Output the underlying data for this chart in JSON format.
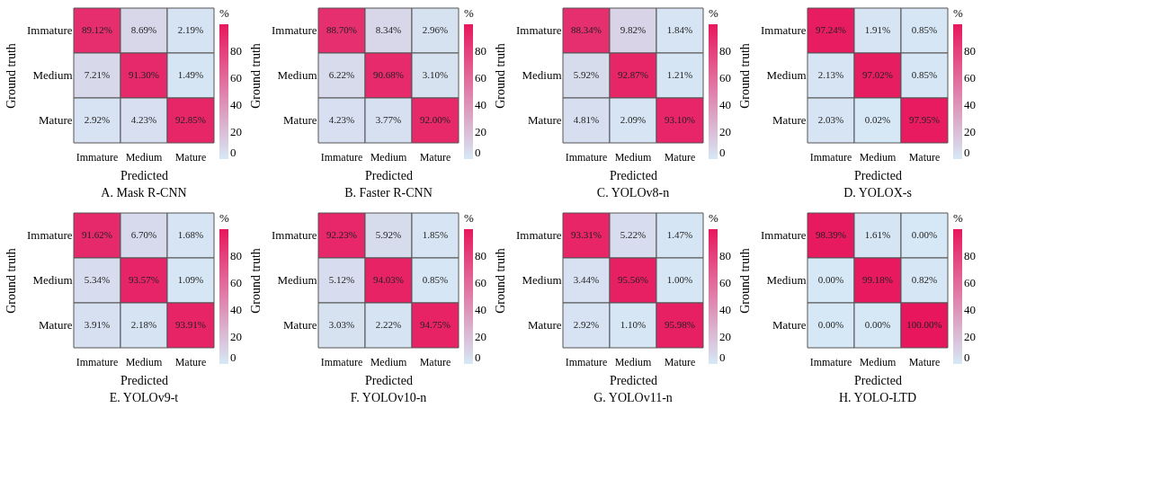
{
  "chart_data": [
    {
      "type": "heatmap",
      "title": "A. Mask R-CNN",
      "xlabel": "Predicted",
      "ylabel": "Ground truth",
      "clabel": "%",
      "categories": [
        "Immature",
        "Medium",
        "Mature"
      ],
      "y_categories": [
        "Immature",
        "Medium",
        "Mature"
      ],
      "clim": [
        0,
        100
      ],
      "cticks": [
        0,
        20,
        40,
        60,
        80
      ],
      "cells": [
        [
          89.12,
          8.69,
          2.19
        ],
        [
          7.21,
          91.3,
          1.49
        ],
        [
          2.92,
          4.23,
          92.85
        ]
      ],
      "cell_labels": [
        [
          "89.12%",
          "8.69%",
          "2.19%"
        ],
        [
          "7.21%",
          "91.30%",
          "1.49%"
        ],
        [
          "2.92%",
          "4.23%",
          "92.85%"
        ]
      ]
    },
    {
      "type": "heatmap",
      "title": "B. Faster R-CNN",
      "xlabel": "Predicted",
      "ylabel": "Ground truth",
      "clabel": "%",
      "categories": [
        "Immature",
        "Medium",
        "Mature"
      ],
      "y_categories": [
        "Immature",
        "Medium",
        "Mature"
      ],
      "clim": [
        0,
        100
      ],
      "cticks": [
        0,
        20,
        40,
        60,
        80
      ],
      "cells": [
        [
          88.7,
          8.34,
          2.96
        ],
        [
          6.22,
          90.68,
          3.1
        ],
        [
          4.23,
          3.77,
          92.0
        ]
      ],
      "cell_labels": [
        [
          "88.70%",
          "8.34%",
          "2.96%"
        ],
        [
          "6.22%",
          "90.68%",
          "3.10%"
        ],
        [
          "4.23%",
          "3.77%",
          "92.00%"
        ]
      ]
    },
    {
      "type": "heatmap",
      "title": "C. YOLOv8-n",
      "xlabel": "Predicted",
      "ylabel": "Ground truth",
      "clabel": "%",
      "categories": [
        "Immature",
        "Medium",
        "Mature"
      ],
      "y_categories": [
        "Immature",
        "Medium",
        "Mature"
      ],
      "clim": [
        0,
        100
      ],
      "cticks": [
        0,
        20,
        40,
        60,
        80
      ],
      "cells": [
        [
          88.34,
          9.82,
          1.84
        ],
        [
          5.92,
          92.87,
          1.21
        ],
        [
          4.81,
          2.09,
          93.1
        ]
      ],
      "cell_labels": [
        [
          "88.34%",
          "9.82%",
          "1.84%"
        ],
        [
          "5.92%",
          "92.87%",
          "1.21%"
        ],
        [
          "4.81%",
          "2.09%",
          "93.10%"
        ]
      ]
    },
    {
      "type": "heatmap",
      "title": "D. YOLOX-s",
      "xlabel": "Predicted",
      "ylabel": "Ground truth",
      "clabel": "%",
      "categories": [
        "Immature",
        "Medium",
        "Mature"
      ],
      "y_categories": [
        "Immature",
        "Medium",
        "Mature"
      ],
      "clim": [
        0,
        100
      ],
      "cticks": [
        0,
        20,
        40,
        60,
        80
      ],
      "cells": [
        [
          97.24,
          1.91,
          0.85
        ],
        [
          2.13,
          97.02,
          0.85
        ],
        [
          2.03,
          0.02,
          97.95
        ]
      ],
      "cell_labels": [
        [
          "97.24%",
          "1.91%",
          "0.85%"
        ],
        [
          "2.13%",
          "97.02%",
          "0.85%"
        ],
        [
          "2.03%",
          "0.02%",
          "97.95%"
        ]
      ]
    },
    {
      "type": "heatmap",
      "title": "E. YOLOv9-t",
      "xlabel": "Predicted",
      "ylabel": "Ground truth",
      "clabel": "%",
      "categories": [
        "Immature",
        "Medium",
        "Mature"
      ],
      "y_categories": [
        "Immature",
        "Medium",
        "Mature"
      ],
      "clim": [
        0,
        100
      ],
      "cticks": [
        0,
        20,
        40,
        60,
        80
      ],
      "cells": [
        [
          91.62,
          6.7,
          1.68
        ],
        [
          5.34,
          93.57,
          1.09
        ],
        [
          3.91,
          2.18,
          93.91
        ]
      ],
      "cell_labels": [
        [
          "91.62%",
          "6.70%",
          "1.68%"
        ],
        [
          "5.34%",
          "93.57%",
          "1.09%"
        ],
        [
          "3.91%",
          "2.18%",
          "93.91%"
        ]
      ]
    },
    {
      "type": "heatmap",
      "title": "F. YOLOv10-n",
      "xlabel": "Predicted",
      "ylabel": "Ground truth",
      "clabel": "%",
      "categories": [
        "Immature",
        "Medium",
        "Mature"
      ],
      "y_categories": [
        "Immature",
        "Medium",
        "Mature"
      ],
      "clim": [
        0,
        100
      ],
      "cticks": [
        0,
        20,
        40,
        60,
        80
      ],
      "cells": [
        [
          92.23,
          5.92,
          1.85
        ],
        [
          5.12,
          94.03,
          0.85
        ],
        [
          3.03,
          2.22,
          94.75
        ]
      ],
      "cell_labels": [
        [
          "92.23%",
          "5.92%",
          "1.85%"
        ],
        [
          "5.12%",
          "94.03%",
          "0.85%"
        ],
        [
          "3.03%",
          "2.22%",
          "94.75%"
        ]
      ]
    },
    {
      "type": "heatmap",
      "title": "G. YOLOv11-n",
      "xlabel": "Predicted",
      "ylabel": "Ground truth",
      "clabel": "%",
      "categories": [
        "Immature",
        "Medium",
        "Mature"
      ],
      "y_categories": [
        "Immature",
        "Medium",
        "Mature"
      ],
      "clim": [
        0,
        100
      ],
      "cticks": [
        0,
        20,
        40,
        60,
        80
      ],
      "cells": [
        [
          93.31,
          5.22,
          1.47
        ],
        [
          3.44,
          95.56,
          1.0
        ],
        [
          2.92,
          1.1,
          95.98
        ]
      ],
      "cell_labels": [
        [
          "93.31%",
          "5.22%",
          "1.47%"
        ],
        [
          "3.44%",
          "95.56%",
          "1.00%"
        ],
        [
          "2.92%",
          "1.10%",
          "95.98%"
        ]
      ]
    },
    {
      "type": "heatmap",
      "title": "H. YOLO-LTD",
      "xlabel": "Predicted",
      "ylabel": "Ground truth",
      "clabel": "%",
      "categories": [
        "Immature",
        "Medium",
        "Mature"
      ],
      "y_categories": [
        "Immature",
        "Medium",
        "Mature"
      ],
      "clim": [
        0,
        100
      ],
      "cticks": [
        0,
        20,
        40,
        60,
        80
      ],
      "cells": [
        [
          98.39,
          1.61,
          0.0
        ],
        [
          0.0,
          99.18,
          0.82
        ],
        [
          0.0,
          0.0,
          100.0
        ]
      ],
      "cell_labels": [
        [
          "98.39%",
          "1.61%",
          "0.00%"
        ],
        [
          "0.00%",
          "99.18%",
          "0.82%"
        ],
        [
          "0.00%",
          "0.00%",
          "100.00%"
        ]
      ]
    }
  ]
}
